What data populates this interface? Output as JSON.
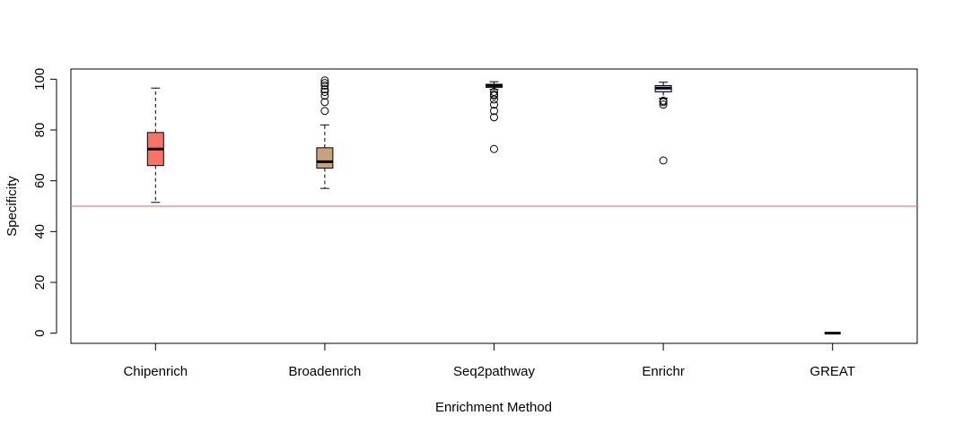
{
  "chart_data": {
    "type": "box",
    "title": "",
    "xlabel": "Enrichment Method",
    "ylabel": "Specificity",
    "ylim": [
      -4,
      104
    ],
    "yticks": [
      0,
      20,
      40,
      60,
      80,
      100
    ],
    "reference_line": {
      "y": 50,
      "color": "#f08080"
    },
    "grid": false,
    "categories": [
      "Chipenrich",
      "Broadenrich",
      "Seq2pathway",
      "Enrichr",
      "GREAT"
    ],
    "boxes": [
      {
        "name": "Chipenrich",
        "color": "#fa7268",
        "whisker_low": 51.5,
        "q1": 66,
        "median": 72.5,
        "q3": 79,
        "whisker_high": 96.5,
        "outliers": []
      },
      {
        "name": "Broadenrich",
        "color": "#c8a27c",
        "whisker_low": 57,
        "q1": 65,
        "median": 67.5,
        "q3": 73,
        "whisker_high": 82,
        "outliers": [
          87.5,
          91,
          93.5,
          95,
          96,
          97.5,
          98.5,
          99.5
        ]
      },
      {
        "name": "Seq2pathway",
        "color": "#d8d0f0",
        "whisker_low": 96,
        "q1": 96.8,
        "median": 97.5,
        "q3": 98,
        "whisker_high": 99,
        "outliers": [
          72.5,
          85,
          87.5,
          90,
          92,
          93.5,
          94,
          95
        ]
      },
      {
        "name": "Enrichr",
        "color": "#d8d0f0",
        "whisker_low": 92.5,
        "q1": 95,
        "median": 96.5,
        "q3": 97.5,
        "whisker_high": 98.8,
        "outliers": [
          68,
          90,
          91,
          91.5
        ]
      },
      {
        "name": "GREAT",
        "color": "#ffffff",
        "whisker_low": 0,
        "q1": 0,
        "median": 0,
        "q3": 0,
        "whisker_high": 0,
        "outliers": []
      }
    ]
  }
}
